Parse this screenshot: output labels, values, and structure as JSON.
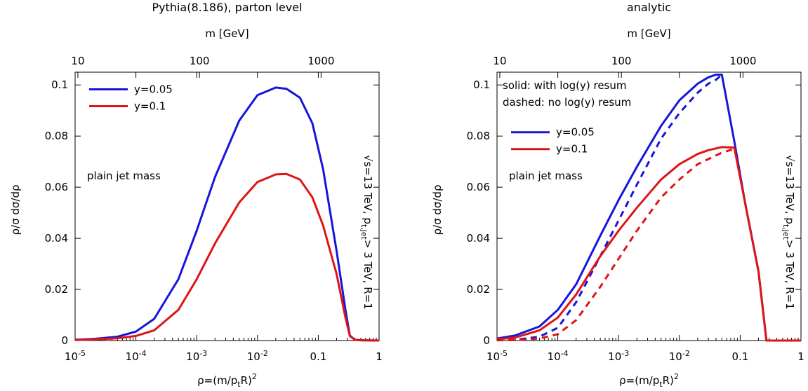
{
  "chart_data": [
    {
      "type": "line",
      "title": "Pythia(8.186), parton level",
      "xlabel_main": "ρ=(m/p",
      "xlabel_sub": "t",
      "xlabel_tail": "R)",
      "xlabel_sup": "2",
      "xscale": "log",
      "xlim": [
        1e-05,
        1
      ],
      "xticks": [
        {
          "value": 1e-05,
          "base": "10",
          "exp": "-5"
        },
        {
          "value": 0.0001,
          "base": "10",
          "exp": "-4"
        },
        {
          "value": 0.001,
          "base": "10",
          "exp": "-3"
        },
        {
          "value": 0.01,
          "base": "10",
          "exp": "-2"
        },
        {
          "value": 0.1,
          "base": "0.1",
          "exp": ""
        },
        {
          "value": 1,
          "base": "1",
          "exp": ""
        }
      ],
      "top_axis_label": "m [GeV]",
      "top_ticks": [
        {
          "value": 10,
          "label": "10"
        },
        {
          "value": 100,
          "label": "100"
        },
        {
          "value": 1000,
          "label": "1000"
        }
      ],
      "ylabel": "ρ/σ dσ/dρ",
      "ylim": [
        0,
        0.105
      ],
      "yticks": [
        {
          "value": 0,
          "label": "0"
        },
        {
          "value": 0.02,
          "label": "0.02"
        },
        {
          "value": 0.04,
          "label": "0.04"
        },
        {
          "value": 0.06,
          "label": "0.06"
        },
        {
          "value": 0.08,
          "label": "0.08"
        },
        {
          "value": 0.1,
          "label": "0.1"
        }
      ],
      "annotations": {
        "text": "plain jet mass"
      },
      "side_label": {
        "main": "√s=13 TeV, p",
        "sub": "t,jet",
        "tail": "> 3 TeV, R=1"
      },
      "legend_notes": [],
      "legend_position": "top-left",
      "series": [
        {
          "name": "y=0.05",
          "color": "#1515dd",
          "dash": false,
          "x": [
            1e-05,
            2e-05,
            5e-05,
            0.0001,
            0.0002,
            0.0005,
            0.001,
            0.002,
            0.005,
            0.01,
            0.02,
            0.03,
            0.05,
            0.08,
            0.12,
            0.2,
            0.28,
            0.33,
            0.4,
            0.5,
            1
          ],
          "y": [
            0.0003,
            0.0006,
            0.0015,
            0.0035,
            0.0085,
            0.024,
            0.043,
            0.064,
            0.086,
            0.096,
            0.099,
            0.0985,
            0.095,
            0.085,
            0.067,
            0.035,
            0.012,
            0.002,
            0.0003,
            0.0001,
            0
          ]
        },
        {
          "name": "y=0.1",
          "color": "#dd1515",
          "dash": false,
          "x": [
            1e-05,
            2e-05,
            5e-05,
            0.0001,
            0.0002,
            0.0005,
            0.001,
            0.002,
            0.005,
            0.01,
            0.02,
            0.03,
            0.05,
            0.08,
            0.12,
            0.2,
            0.28,
            0.33,
            0.4,
            0.5,
            1
          ],
          "y": [
            0.0002,
            0.0004,
            0.0009,
            0.0018,
            0.004,
            0.012,
            0.024,
            0.038,
            0.054,
            0.062,
            0.065,
            0.0652,
            0.063,
            0.056,
            0.045,
            0.026,
            0.009,
            0.0018,
            0.0003,
            0.0001,
            0
          ]
        }
      ]
    },
    {
      "type": "line",
      "title": "analytic",
      "xlabel_main": "ρ=(m/p",
      "xlabel_sub": "t",
      "xlabel_tail": "R)",
      "xlabel_sup": "2",
      "xscale": "log",
      "xlim": [
        1e-05,
        1
      ],
      "xticks": [
        {
          "value": 1e-05,
          "base": "10",
          "exp": "-5"
        },
        {
          "value": 0.0001,
          "base": "10",
          "exp": "-4"
        },
        {
          "value": 0.001,
          "base": "10",
          "exp": "-3"
        },
        {
          "value": 0.01,
          "base": "10",
          "exp": "-2"
        },
        {
          "value": 0.1,
          "base": "0.1",
          "exp": ""
        },
        {
          "value": 1,
          "base": "1",
          "exp": ""
        }
      ],
      "top_axis_label": "m [GeV]",
      "top_ticks": [
        {
          "value": 10,
          "label": "10"
        },
        {
          "value": 100,
          "label": "100"
        },
        {
          "value": 1000,
          "label": "1000"
        }
      ],
      "ylabel": "ρ/σ dσ/dρ",
      "ylim": [
        0,
        0.105
      ],
      "yticks": [
        {
          "value": 0,
          "label": "0"
        },
        {
          "value": 0.02,
          "label": "0.02"
        },
        {
          "value": 0.04,
          "label": "0.04"
        },
        {
          "value": 0.06,
          "label": "0.06"
        },
        {
          "value": 0.08,
          "label": "0.08"
        },
        {
          "value": 0.1,
          "label": "0.1"
        }
      ],
      "annotations": {
        "text": "plain jet mass"
      },
      "side_label": {
        "main": "√s=13 TeV, p",
        "sub": "t,jet",
        "tail": "> 3 TeV, R=1"
      },
      "legend_notes": [
        "solid:  with log(y) resum",
        "dashed: no log(y) resum"
      ],
      "legend_position": "top-left",
      "series": [
        {
          "name": "y=0.05",
          "color": "#1515dd",
          "dash": false,
          "x": [
            1e-05,
            2e-05,
            5e-05,
            0.0001,
            0.0002,
            0.0005,
            0.001,
            0.002,
            0.005,
            0.01,
            0.02,
            0.03,
            0.04,
            0.05,
            0.08,
            0.12,
            0.2,
            0.27,
            0.4,
            1
          ],
          "y": [
            0.0008,
            0.002,
            0.0055,
            0.012,
            0.022,
            0.041,
            0.055,
            0.068,
            0.084,
            0.094,
            0.1005,
            0.103,
            0.104,
            0.104,
            0.078,
            0.054,
            0.027,
            0,
            0,
            0
          ]
        },
        {
          "name": "",
          "color": "#1515dd",
          "dash": true,
          "x": [
            1e-05,
            2e-05,
            5e-05,
            0.0001,
            0.0002,
            0.0005,
            0.001,
            0.002,
            0.005,
            0.01,
            0.02,
            0.03,
            0.04,
            0.047
          ],
          "y": [
            0.0001,
            0.0003,
            0.0015,
            0.005,
            0.015,
            0.033,
            0.047,
            0.061,
            0.079,
            0.089,
            0.097,
            0.1005,
            0.102,
            0.1035
          ]
        },
        {
          "name": "y=0.1",
          "color": "#dd1515",
          "dash": false,
          "x": [
            1e-05,
            2e-05,
            5e-05,
            0.0001,
            0.0002,
            0.0005,
            0.001,
            0.002,
            0.005,
            0.01,
            0.02,
            0.03,
            0.05,
            0.08,
            0.12,
            0.2,
            0.27,
            0.4,
            1
          ],
          "y": [
            0.0005,
            0.0012,
            0.004,
            0.009,
            0.018,
            0.033,
            0.043,
            0.052,
            0.063,
            0.069,
            0.073,
            0.0745,
            0.0757,
            0.0755,
            0.054,
            0.027,
            0,
            0,
            0
          ]
        },
        {
          "name": "",
          "color": "#dd1515",
          "dash": true,
          "x": [
            1e-05,
            2e-05,
            5e-05,
            0.0001,
            0.0002,
            0.0005,
            0.001,
            0.002,
            0.005,
            0.01,
            0.02,
            0.03,
            0.05,
            0.08
          ],
          "y": [
            0.0001,
            0.0002,
            0.0008,
            0.0025,
            0.008,
            0.021,
            0.032,
            0.043,
            0.056,
            0.063,
            0.069,
            0.071,
            0.0735,
            0.075
          ]
        }
      ]
    }
  ]
}
